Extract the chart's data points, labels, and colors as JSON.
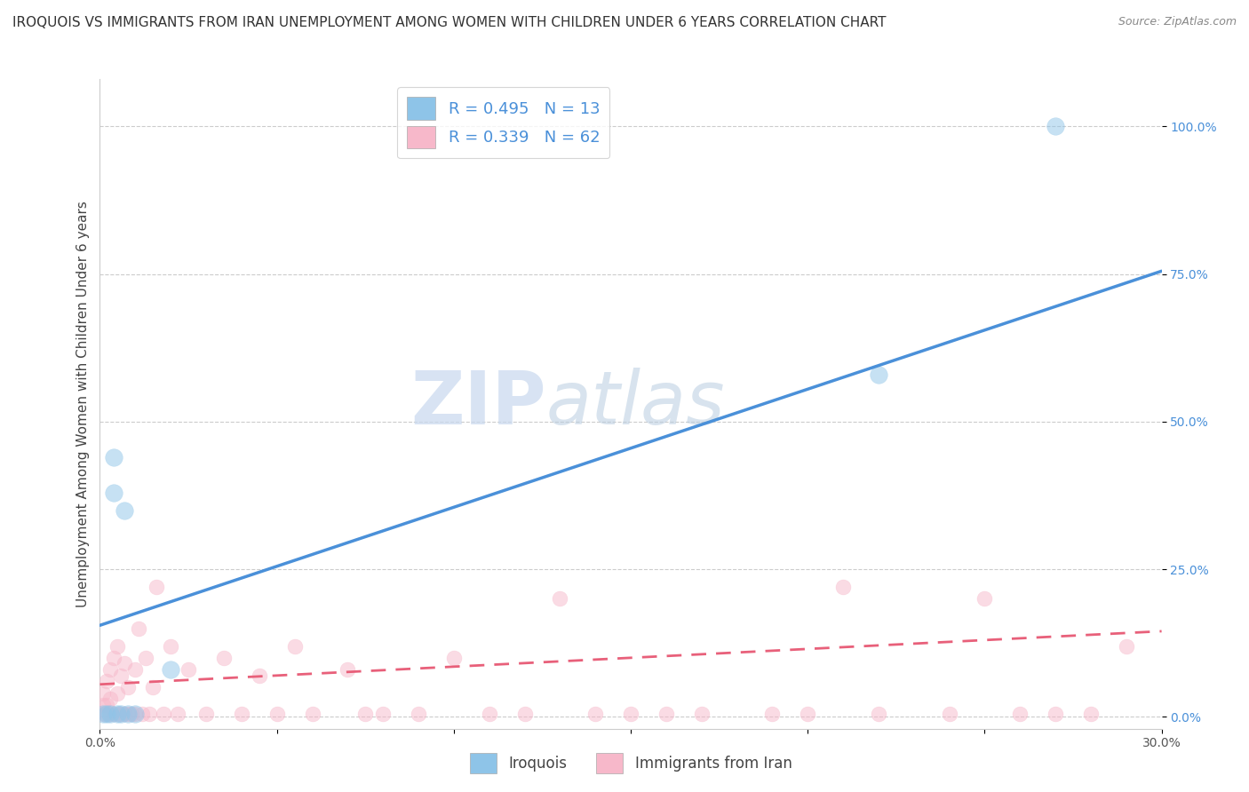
{
  "title": "IROQUOIS VS IMMIGRANTS FROM IRAN UNEMPLOYMENT AMONG WOMEN WITH CHILDREN UNDER 6 YEARS CORRELATION CHART",
  "source": "Source: ZipAtlas.com",
  "ylabel": "Unemployment Among Women with Children Under 6 years",
  "xlim": [
    0.0,
    0.3
  ],
  "ylim": [
    -0.02,
    1.08
  ],
  "xticks": [
    0.0,
    0.05,
    0.1,
    0.15,
    0.2,
    0.25,
    0.3
  ],
  "xtick_labels": [
    "0.0%",
    "",
    "",
    "",
    "",
    "",
    "30.0%"
  ],
  "ytick_labels_right": [
    "0.0%",
    "25.0%",
    "50.0%",
    "75.0%",
    "100.0%"
  ],
  "ytick_vals": [
    0.0,
    0.25,
    0.5,
    0.75,
    1.0
  ],
  "watermark": "ZIPatlas",
  "iroquois_color": "#8ec4e8",
  "iran_color": "#f7b8ca",
  "iroquois_line_color": "#4a90d9",
  "iran_line_color": "#e8607a",
  "R_iroquois": 0.495,
  "N_iroquois": 13,
  "R_iran": 0.339,
  "N_iran": 62,
  "legend_label_iroquois": "Iroquois",
  "legend_label_iran": "Immigrants from Iran",
  "iroquois_x": [
    0.001,
    0.002,
    0.003,
    0.004,
    0.004,
    0.005,
    0.006,
    0.007,
    0.008,
    0.01,
    0.02,
    0.22,
    0.27
  ],
  "iroquois_y": [
    0.005,
    0.005,
    0.005,
    0.38,
    0.44,
    0.005,
    0.005,
    0.35,
    0.005,
    0.005,
    0.08,
    0.58,
    1.0
  ],
  "iran_x": [
    0.001,
    0.001,
    0.001,
    0.002,
    0.002,
    0.002,
    0.003,
    0.003,
    0.003,
    0.004,
    0.004,
    0.005,
    0.005,
    0.005,
    0.006,
    0.006,
    0.007,
    0.007,
    0.008,
    0.008,
    0.009,
    0.01,
    0.01,
    0.011,
    0.012,
    0.013,
    0.014,
    0.015,
    0.016,
    0.018,
    0.02,
    0.022,
    0.025,
    0.03,
    0.035,
    0.04,
    0.045,
    0.05,
    0.055,
    0.06,
    0.07,
    0.075,
    0.08,
    0.09,
    0.1,
    0.11,
    0.12,
    0.13,
    0.14,
    0.15,
    0.16,
    0.17,
    0.19,
    0.2,
    0.21,
    0.22,
    0.24,
    0.25,
    0.26,
    0.27,
    0.28,
    0.29
  ],
  "iran_y": [
    0.005,
    0.02,
    0.04,
    0.005,
    0.02,
    0.06,
    0.005,
    0.03,
    0.08,
    0.005,
    0.1,
    0.005,
    0.04,
    0.12,
    0.005,
    0.07,
    0.005,
    0.09,
    0.005,
    0.05,
    0.005,
    0.005,
    0.08,
    0.15,
    0.005,
    0.1,
    0.005,
    0.05,
    0.22,
    0.005,
    0.12,
    0.005,
    0.08,
    0.005,
    0.1,
    0.005,
    0.07,
    0.005,
    0.12,
    0.005,
    0.08,
    0.005,
    0.005,
    0.005,
    0.1,
    0.005,
    0.005,
    0.2,
    0.005,
    0.005,
    0.005,
    0.005,
    0.005,
    0.005,
    0.22,
    0.005,
    0.005,
    0.2,
    0.005,
    0.005,
    0.005,
    0.12
  ],
  "iq_trend_x0": 0.0,
  "iq_trend_y0": 0.155,
  "iq_trend_x1": 0.3,
  "iq_trend_y1": 0.755,
  "ir_trend_x0": 0.0,
  "ir_trend_y0": 0.055,
  "ir_trend_x1": 0.3,
  "ir_trend_y1": 0.145,
  "background_color": "#ffffff",
  "grid_color": "#cccccc",
  "title_fontsize": 11,
  "axis_label_fontsize": 11,
  "tick_fontsize": 10,
  "dot_size_iroquois": 200,
  "dot_size_iran": 150,
  "dot_alpha": 0.5
}
